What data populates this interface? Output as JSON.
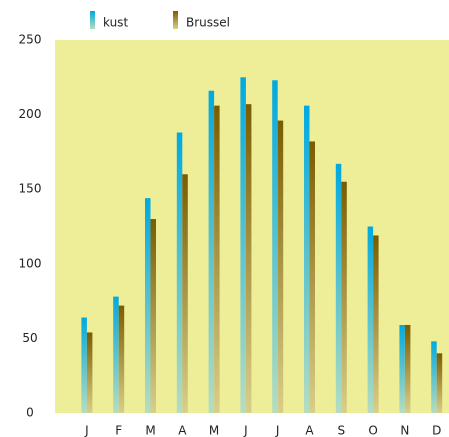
{
  "chart_data": {
    "type": "bar",
    "categories": [
      "J",
      "F",
      "M",
      "A",
      "M",
      "J",
      "J",
      "A",
      "S",
      "O",
      "N",
      "D"
    ],
    "series": [
      {
        "name": "kust",
        "color": "#00a9e0",
        "values": [
          64,
          78,
          144,
          188,
          216,
          225,
          223,
          206,
          167,
          125,
          59,
          48
        ]
      },
      {
        "name": "Brussel",
        "color": "#7a5c00",
        "values": [
          54,
          72,
          130,
          160,
          206,
          207,
          196,
          182,
          155,
          119,
          59,
          40
        ]
      }
    ],
    "ylim": [
      0,
      250
    ],
    "yticks": [
      0,
      50,
      100,
      150,
      200,
      250
    ],
    "grid": false
  }
}
